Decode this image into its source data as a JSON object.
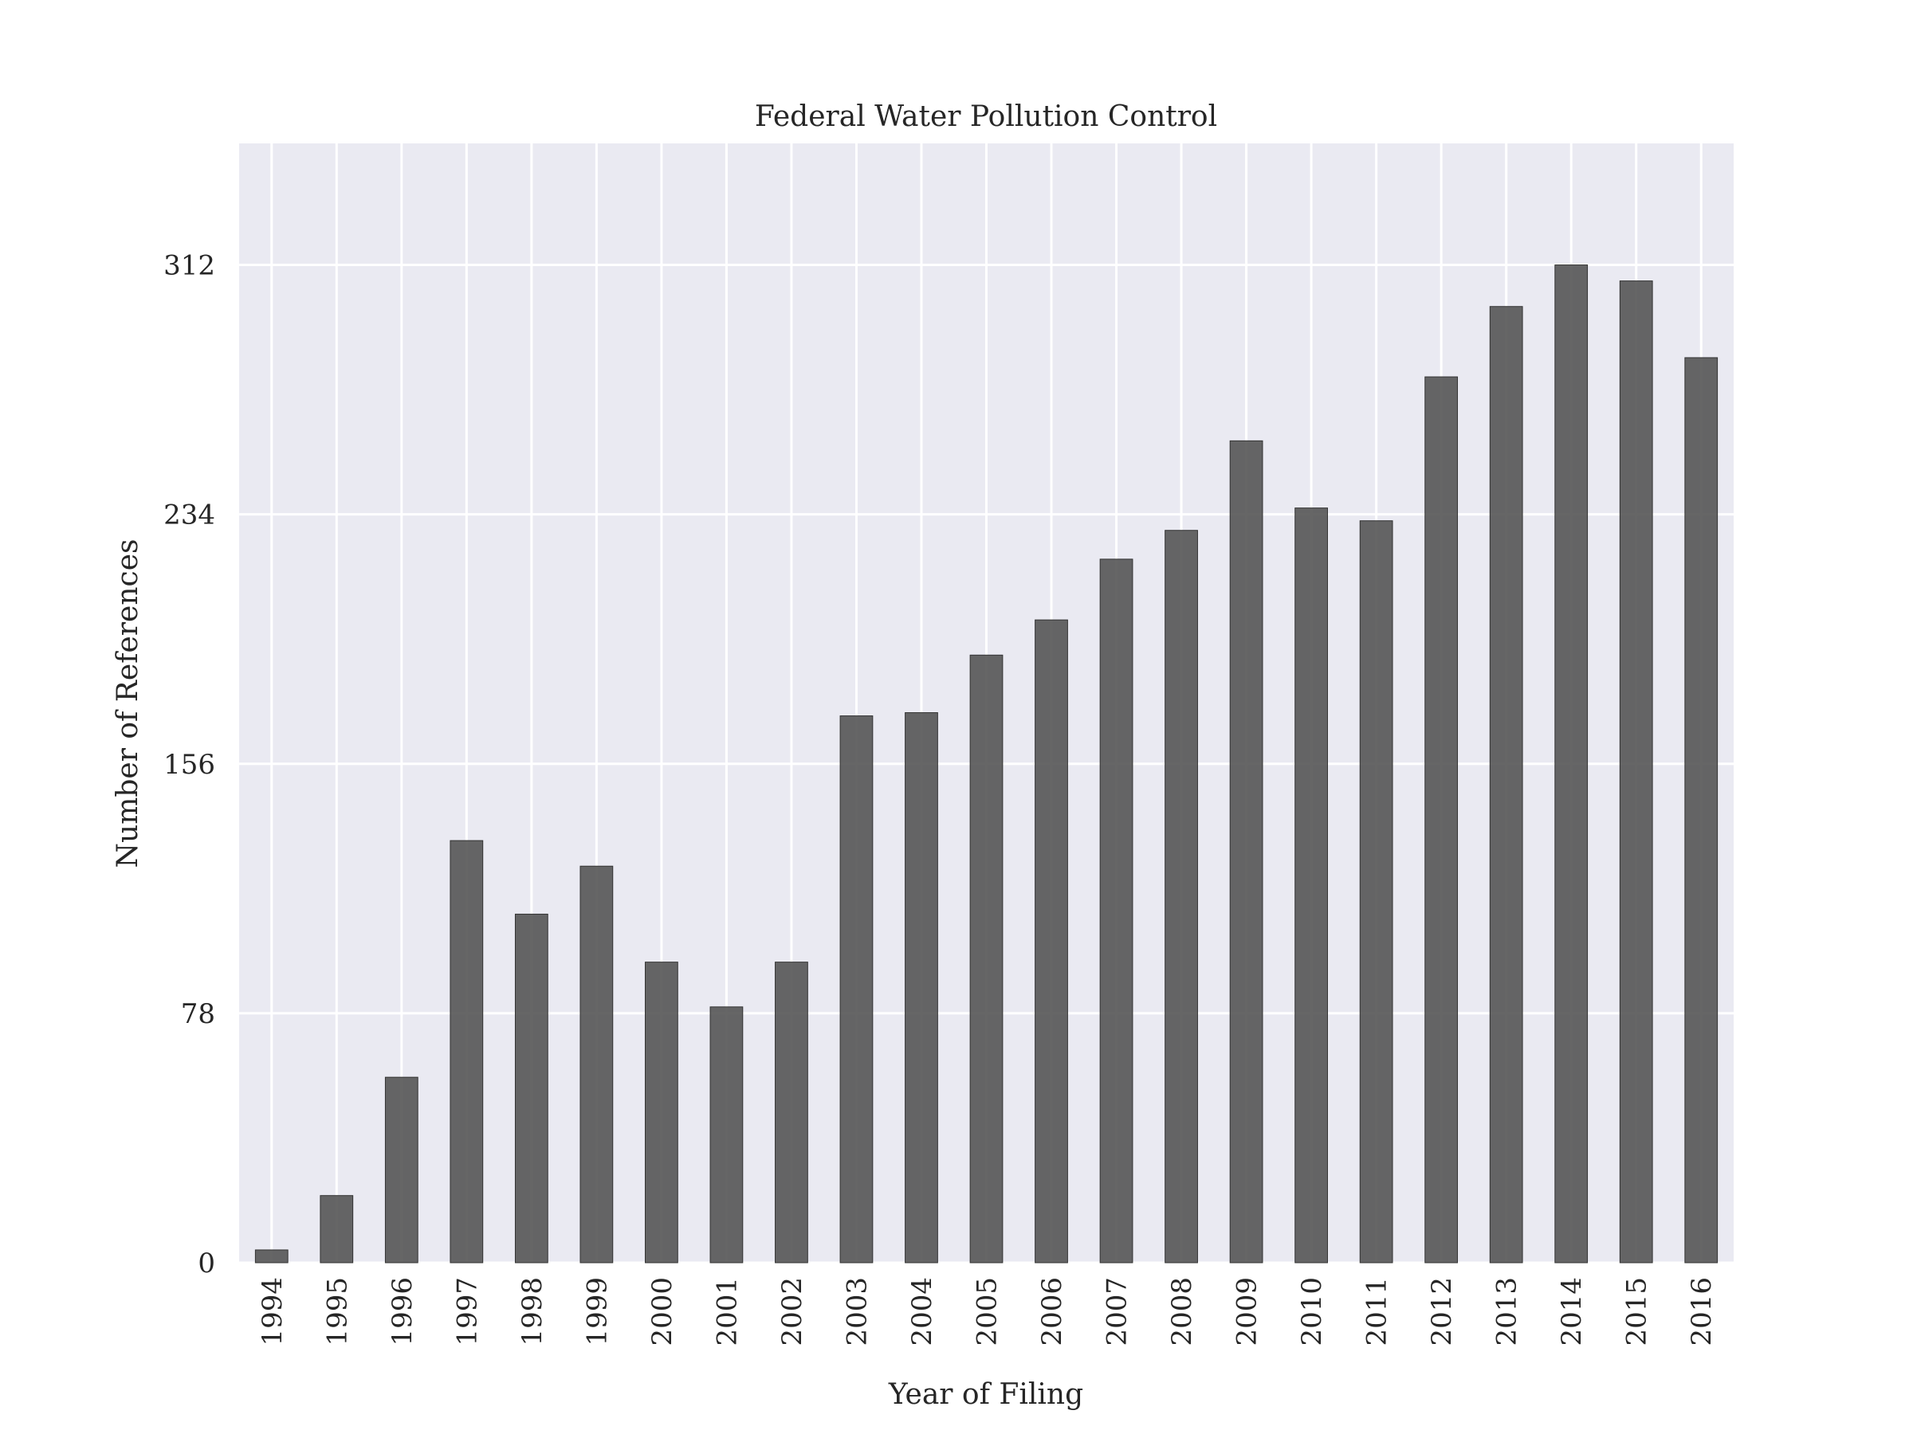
{
  "chart_data": {
    "type": "bar",
    "title": "Federal Water Pollution Control",
    "xlabel": "Year of Filing",
    "ylabel": "Number of References",
    "categories": [
      "1994",
      "1995",
      "1996",
      "1997",
      "1998",
      "1999",
      "2000",
      "2001",
      "2002",
      "2003",
      "2004",
      "2005",
      "2006",
      "2007",
      "2008",
      "2009",
      "2010",
      "2011",
      "2012",
      "2013",
      "2014",
      "2015",
      "2016"
    ],
    "values": [
      4,
      21,
      58,
      132,
      109,
      124,
      94,
      80,
      94,
      171,
      172,
      190,
      201,
      220,
      229,
      257,
      236,
      232,
      277,
      299,
      312,
      307,
      283
    ],
    "yticks": [
      0,
      78,
      156,
      234,
      312
    ],
    "ylim": [
      0,
      350
    ],
    "grid": true,
    "colors": {
      "bar": "#555555",
      "plot_background": "#eaeaf2",
      "grid": "#ffffff"
    }
  }
}
